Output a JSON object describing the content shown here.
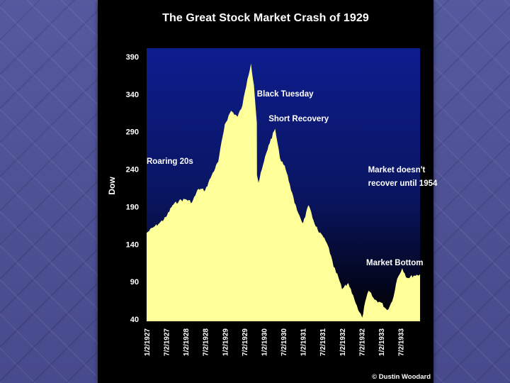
{
  "chart_data": {
    "type": "area",
    "title": "The Great Stock Market Crash of 1929",
    "ylabel": "Dow",
    "xlabel": "",
    "ylim": [
      40,
      390
    ],
    "y_ticks": [
      390,
      340,
      290,
      240,
      190,
      140,
      90,
      40
    ],
    "x_ticks": [
      "1/2/1927",
      "7/2/1927",
      "1/2/1928",
      "7/2/1928",
      "1/2/1929",
      "7/2/1929",
      "1/2/1930",
      "7/2/1930",
      "1/2/1931",
      "7/2/1931",
      "1/2/1932",
      "7/2/1932",
      "1/2/1933",
      "7/2/1933"
    ],
    "grid": false,
    "legend": "none",
    "colors": {
      "fill": "#ffff99",
      "plot_top": "#0d1d8e",
      "plot_bottom": "#000000",
      "panel": "#000000",
      "text": "#ffffff"
    },
    "series": [
      {
        "x": [
          "1927-01-02",
          "1927-03-01",
          "1927-05-01",
          "1927-07-02",
          "1927-09-01",
          "1927-11-01",
          "1928-01-02",
          "1928-03-01",
          "1928-05-01",
          "1928-07-02",
          "1928-09-01",
          "1928-11-01",
          "1929-01-02",
          "1929-03-01",
          "1929-05-01",
          "1929-06-15",
          "1929-08-01",
          "1929-09-03",
          "1929-10-01",
          "1929-10-28",
          "1929-10-29",
          "1929-11-13",
          "1930-01-02",
          "1930-02-15",
          "1930-04-17",
          "1930-06-01",
          "1930-07-15",
          "1930-09-01",
          "1930-10-15",
          "1930-12-01",
          "1931-01-02",
          "1931-02-24",
          "1931-04-01",
          "1931-06-01",
          "1931-07-02",
          "1931-09-01",
          "1931-10-15",
          "1931-12-01",
          "1932-01-02",
          "1932-03-01",
          "1932-04-15",
          "1932-06-01",
          "1932-07-08",
          "1932-08-15",
          "1932-09-07",
          "1932-11-01",
          "1933-01-02",
          "1933-02-27",
          "1933-04-15",
          "1933-06-01",
          "1933-07-18",
          "1933-09-01",
          "1933-11-01",
          "1933-12-31"
        ],
        "values": [
          155,
          162,
          168,
          176,
          192,
          198,
          200,
          196,
          214,
          212,
          232,
          250,
          300,
          318,
          310,
          325,
          360,
          381,
          352,
          302,
          232,
          222,
          250,
          272,
          294,
          255,
          245,
          220,
          195,
          178,
          168,
          192,
          175,
          155,
          152,
          135,
          110,
          95,
          80,
          88,
          72,
          52,
          42,
          68,
          78,
          66,
          62,
          52,
          64,
          94,
          108,
          95,
          98,
          100
        ]
      }
    ],
    "annotations": [
      {
        "text": "Roaring 20s",
        "at": "1927-01-02",
        "value": 247
      },
      {
        "text": "Black Tuesday",
        "at": "1929-10-29",
        "value": 337
      },
      {
        "text": "Short Recovery",
        "at": "1930-02-15",
        "value": 304
      },
      {
        "text": "Market doesn't",
        "at": "1932-09-01",
        "value": 236
      },
      {
        "text": "recover until 1954",
        "at": "1932-09-01",
        "value": 218
      },
      {
        "text": "Market Bottom",
        "at": "1932-08-15",
        "value": 112
      }
    ]
  },
  "credit": "© Dustin Woodard"
}
